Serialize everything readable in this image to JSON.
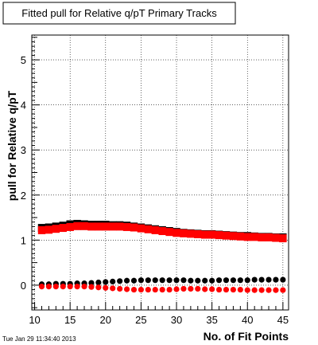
{
  "chart_data": {
    "type": "scatter",
    "title": "Fitted pull for Relative q/pT Primary Tracks",
    "xlabel": "No. of Fit Points",
    "ylabel": "pull for Relative q/pT",
    "timestamp": "Tue Jan 29 11:34:40 2013",
    "xlim": [
      9.6,
      45.8
    ],
    "ylim": [
      -0.55,
      5.55
    ],
    "grid": true,
    "x_ticks": [
      10,
      15,
      20,
      25,
      30,
      35,
      40,
      45
    ],
    "y_ticks": [
      0,
      1,
      2,
      3,
      4,
      5
    ],
    "x": [
      11,
      12,
      13,
      14,
      15,
      16,
      17,
      18,
      19,
      20,
      21,
      22,
      23,
      24,
      25,
      26,
      27,
      28,
      29,
      30,
      31,
      32,
      33,
      34,
      35,
      36,
      37,
      38,
      39,
      40,
      41,
      42,
      43,
      44,
      45
    ],
    "series": [
      {
        "color": "#000000",
        "style": "dashed-band",
        "values": [
          1.27,
          1.28,
          1.3,
          1.32,
          1.35,
          1.36,
          1.35,
          1.34,
          1.34,
          1.34,
          1.33,
          1.33,
          1.32,
          1.3,
          1.28,
          1.26,
          1.24,
          1.22,
          1.2,
          1.18,
          1.16,
          1.15,
          1.14,
          1.13,
          1.13,
          1.12,
          1.11,
          1.1,
          1.09,
          1.09,
          1.08,
          1.07,
          1.07,
          1.06,
          1.06
        ]
      },
      {
        "color": "#ff0000",
        "style": "band",
        "values": [
          1.22,
          1.23,
          1.25,
          1.27,
          1.29,
          1.31,
          1.31,
          1.3,
          1.3,
          1.3,
          1.3,
          1.3,
          1.29,
          1.28,
          1.26,
          1.24,
          1.22,
          1.2,
          1.18,
          1.16,
          1.15,
          1.14,
          1.13,
          1.12,
          1.12,
          1.11,
          1.1,
          1.09,
          1.08,
          1.07,
          1.07,
          1.06,
          1.06,
          1.05,
          1.04
        ]
      },
      {
        "color": "#000000",
        "style": "dots",
        "values": [
          0.02,
          0.02,
          0.03,
          0.03,
          0.03,
          0.04,
          0.04,
          0.05,
          0.06,
          0.07,
          0.08,
          0.09,
          0.1,
          0.1,
          0.11,
          0.11,
          0.11,
          0.11,
          0.11,
          0.11,
          0.11,
          0.1,
          0.1,
          0.1,
          0.1,
          0.11,
          0.11,
          0.11,
          0.11,
          0.11,
          0.12,
          0.12,
          0.12,
          0.12,
          0.12
        ]
      },
      {
        "color": "#ff0000",
        "style": "dots",
        "values": [
          -0.03,
          -0.03,
          -0.03,
          -0.03,
          -0.03,
          -0.03,
          -0.03,
          -0.04,
          -0.05,
          -0.06,
          -0.07,
          -0.08,
          -0.09,
          -0.1,
          -0.1,
          -0.1,
          -0.1,
          -0.1,
          -0.1,
          -0.09,
          -0.08,
          -0.08,
          -0.08,
          -0.09,
          -0.09,
          -0.1,
          -0.1,
          -0.1,
          -0.1,
          -0.11,
          -0.11,
          -0.11,
          -0.11,
          -0.11,
          -0.11
        ]
      }
    ]
  }
}
